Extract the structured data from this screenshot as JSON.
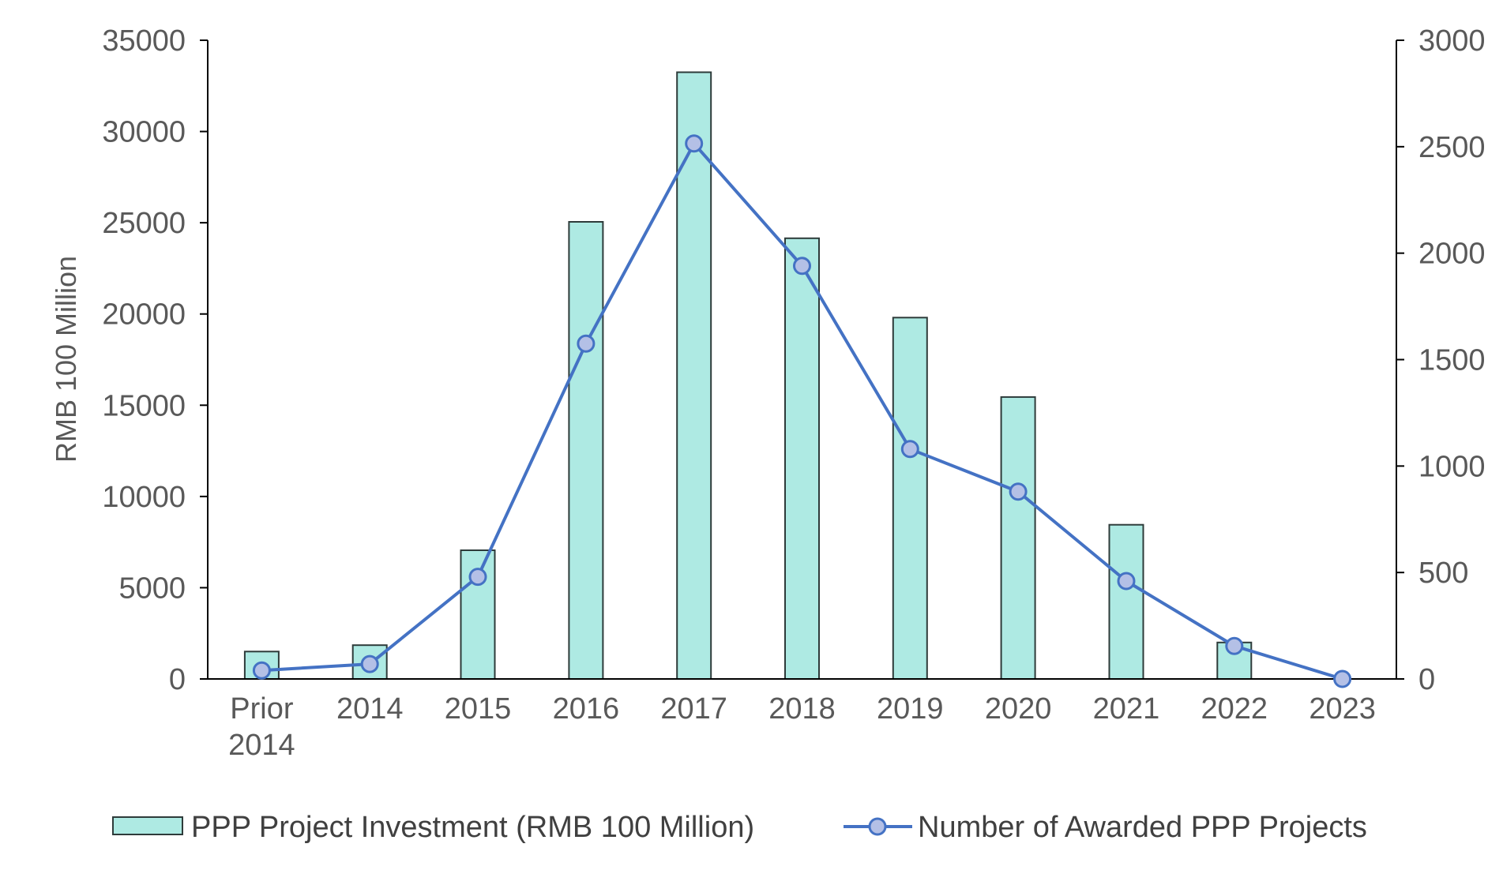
{
  "chart_data": {
    "type": "bar",
    "categories": [
      "Prior 2014",
      "2014",
      "2015",
      "2016",
      "2017",
      "2018",
      "2019",
      "2020",
      "2021",
      "2022",
      "2023"
    ],
    "category_lines": [
      [
        "Prior",
        "2014"
      ],
      [
        "2014"
      ],
      [
        "2015"
      ],
      [
        "2016"
      ],
      [
        "2017"
      ],
      [
        "2018"
      ],
      [
        "2019"
      ],
      [
        "2020"
      ],
      [
        "2021"
      ],
      [
        "2022"
      ],
      [
        "2023"
      ]
    ],
    "series": [
      {
        "name": "PPP Project Investment (RMB 100 Million)",
        "type": "bar",
        "axis": "left",
        "color": "#aeeae3",
        "values": [
          1500,
          1850,
          7050,
          25050,
          33250,
          24150,
          19800,
          15450,
          8450,
          2000,
          0
        ]
      },
      {
        "name": "Number of Awarded PPP Projects",
        "type": "line",
        "axis": "right",
        "color": "#4472c4",
        "marker_color": "#b4c0e6",
        "values": [
          40,
          70,
          480,
          1575,
          2515,
          1940,
          1080,
          880,
          460,
          155,
          0
        ]
      }
    ],
    "ylabel": "RMB 100 Million",
    "ylim": [
      0,
      35000
    ],
    "y_ticks": [
      "0",
      "5000",
      "10000",
      "15000",
      "20000",
      "25000",
      "30000",
      "35000"
    ],
    "y2lim": [
      0,
      3000
    ],
    "y2_ticks": [
      "0",
      "500",
      "1000",
      "1500",
      "2000",
      "2500",
      "3000"
    ],
    "grid": false,
    "legend_position": "bottom"
  }
}
